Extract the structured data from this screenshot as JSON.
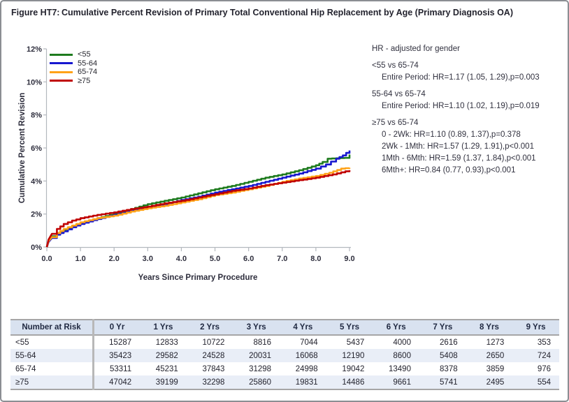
{
  "title": {
    "label": "Figure HT7:",
    "text": "Cumulative Percent Revision of Primary Total Conventional Hip Replacement by Age (Primary Diagnosis OA)"
  },
  "chart_data": {
    "type": "line",
    "xlabel": "Years Since Primary Procedure",
    "ylabel": "Cumulative Percent Revision",
    "xlim": [
      0,
      9
    ],
    "ylim": [
      0,
      12
    ],
    "x_ticks": [
      "0.0",
      "1.0",
      "2.0",
      "3.0",
      "4.0",
      "5.0",
      "6.0",
      "7.0",
      "8.0",
      "9.0"
    ],
    "y_ticks": [
      "0%",
      "2%",
      "4%",
      "6%",
      "8%",
      "10%",
      "12%"
    ],
    "legend_position": "top-left-inside",
    "grid": false,
    "series": [
      {
        "name": "<55",
        "color": "#1e7b1e",
        "points": [
          [
            0,
            0
          ],
          [
            0.05,
            0.35
          ],
          [
            0.15,
            0.65
          ],
          [
            0.3,
            0.85
          ],
          [
            0.5,
            1.05
          ],
          [
            0.75,
            1.25
          ],
          [
            1,
            1.45
          ],
          [
            1.5,
            1.75
          ],
          [
            2,
            2.0
          ],
          [
            2.5,
            2.3
          ],
          [
            3,
            2.6
          ],
          [
            3.5,
            2.8
          ],
          [
            4,
            3.0
          ],
          [
            4.5,
            3.25
          ],
          [
            5,
            3.5
          ],
          [
            5.5,
            3.7
          ],
          [
            6,
            3.95
          ],
          [
            6.5,
            4.2
          ],
          [
            7,
            4.4
          ],
          [
            7.5,
            4.65
          ],
          [
            8,
            4.95
          ],
          [
            8.2,
            5.15
          ],
          [
            8.35,
            5.35
          ],
          [
            8.85,
            5.4
          ],
          [
            9,
            5.6
          ]
        ]
      },
      {
        "name": "55-64",
        "color": "#1717cf",
        "points": [
          [
            0,
            0
          ],
          [
            0.05,
            0.3
          ],
          [
            0.15,
            0.55
          ],
          [
            0.3,
            0.75
          ],
          [
            0.5,
            0.95
          ],
          [
            0.75,
            1.2
          ],
          [
            1,
            1.4
          ],
          [
            1.5,
            1.7
          ],
          [
            2,
            1.95
          ],
          [
            2.5,
            2.2
          ],
          [
            3,
            2.4
          ],
          [
            3.5,
            2.6
          ],
          [
            4,
            2.85
          ],
          [
            4.5,
            3.05
          ],
          [
            5,
            3.3
          ],
          [
            5.5,
            3.5
          ],
          [
            6,
            3.7
          ],
          [
            6.5,
            3.95
          ],
          [
            7,
            4.2
          ],
          [
            7.5,
            4.45
          ],
          [
            8,
            4.75
          ],
          [
            8.3,
            5.0
          ],
          [
            8.6,
            5.35
          ],
          [
            8.8,
            5.55
          ],
          [
            9,
            5.85
          ]
        ]
      },
      {
        "name": "65-74",
        "color": "#ffa218",
        "points": [
          [
            0,
            0
          ],
          [
            0.05,
            0.35
          ],
          [
            0.15,
            0.6
          ],
          [
            0.3,
            0.85
          ],
          [
            0.5,
            1.1
          ],
          [
            0.75,
            1.3
          ],
          [
            1,
            1.5
          ],
          [
            1.5,
            1.75
          ],
          [
            2,
            1.9
          ],
          [
            2.5,
            2.15
          ],
          [
            3,
            2.35
          ],
          [
            3.5,
            2.5
          ],
          [
            4,
            2.7
          ],
          [
            4.5,
            2.9
          ],
          [
            5,
            3.15
          ],
          [
            5.5,
            3.3
          ],
          [
            6,
            3.5
          ],
          [
            6.5,
            3.7
          ],
          [
            7,
            3.95
          ],
          [
            7.5,
            4.15
          ],
          [
            8,
            4.3
          ],
          [
            8.4,
            4.5
          ],
          [
            8.75,
            4.75
          ],
          [
            9,
            4.8
          ]
        ]
      },
      {
        "name": "≥75",
        "color": "#c00000",
        "points": [
          [
            0,
            0
          ],
          [
            0.05,
            0.45
          ],
          [
            0.15,
            0.8
          ],
          [
            0.3,
            1.1
          ],
          [
            0.5,
            1.4
          ],
          [
            0.75,
            1.6
          ],
          [
            1,
            1.75
          ],
          [
            1.5,
            1.95
          ],
          [
            2,
            2.1
          ],
          [
            2.5,
            2.3
          ],
          [
            3,
            2.45
          ],
          [
            3.5,
            2.65
          ],
          [
            4,
            2.8
          ],
          [
            4.5,
            3.0
          ],
          [
            5,
            3.2
          ],
          [
            5.5,
            3.4
          ],
          [
            6,
            3.55
          ],
          [
            6.5,
            3.75
          ],
          [
            7,
            3.9
          ],
          [
            7.5,
            4.05
          ],
          [
            8,
            4.2
          ],
          [
            8.5,
            4.4
          ],
          [
            9,
            4.65
          ]
        ]
      }
    ]
  },
  "hr_annotations": {
    "title": "HR - adjusted for gender",
    "groups": [
      {
        "heading": "<55 vs 65-74",
        "lines": [
          "Entire Period: HR=1.17 (1.05, 1.29),p=0.003"
        ]
      },
      {
        "heading": "55-64 vs 65-74",
        "lines": [
          "Entire Period: HR=1.10 (1.02, 1.19),p=0.019"
        ]
      },
      {
        "heading": "≥75 vs 65-74",
        "lines": [
          "0 - 2Wk: HR=1.10 (0.89, 1.37),p=0.378",
          "2Wk - 1Mth: HR=1.57 (1.29, 1.91),p<0.001",
          "1Mth - 6Mth: HR=1.59 (1.37, 1.84),p<0.001",
          "6Mth+: HR=0.84 (0.77, 0.93),p<0.001"
        ]
      }
    ]
  },
  "risk_table": {
    "header": [
      "Number at Risk",
      "0 Yr",
      "1 Yrs",
      "2 Yrs",
      "3 Yrs",
      "4 Yrs",
      "5 Yrs",
      "6 Yrs",
      "7 Yrs",
      "8 Yrs",
      "9 Yrs"
    ],
    "rows": [
      {
        "label": "<55",
        "values": [
          "15287",
          "12833",
          "10722",
          "8816",
          "7044",
          "5437",
          "4000",
          "2616",
          "1273",
          "353"
        ]
      },
      {
        "label": "55-64",
        "values": [
          "35423",
          "29582",
          "24528",
          "20031",
          "16068",
          "12190",
          "8600",
          "5408",
          "2650",
          "724"
        ]
      },
      {
        "label": "65-74",
        "values": [
          "53311",
          "45231",
          "37843",
          "31298",
          "24998",
          "19042",
          "13490",
          "8378",
          "3859",
          "976"
        ]
      },
      {
        "label": "≥75",
        "values": [
          "47042",
          "39199",
          "32298",
          "25860",
          "19831",
          "14486",
          "9661",
          "5741",
          "2495",
          "554"
        ]
      }
    ]
  },
  "colors": {
    "axis": "#b3b8be",
    "tick_text": "#2e2e3d",
    "title_text": "#23232e",
    "table_header_bg": "#d9e2f0",
    "table_stripe_bg": "#e9eef7",
    "table_border": "#a6a6a6"
  }
}
